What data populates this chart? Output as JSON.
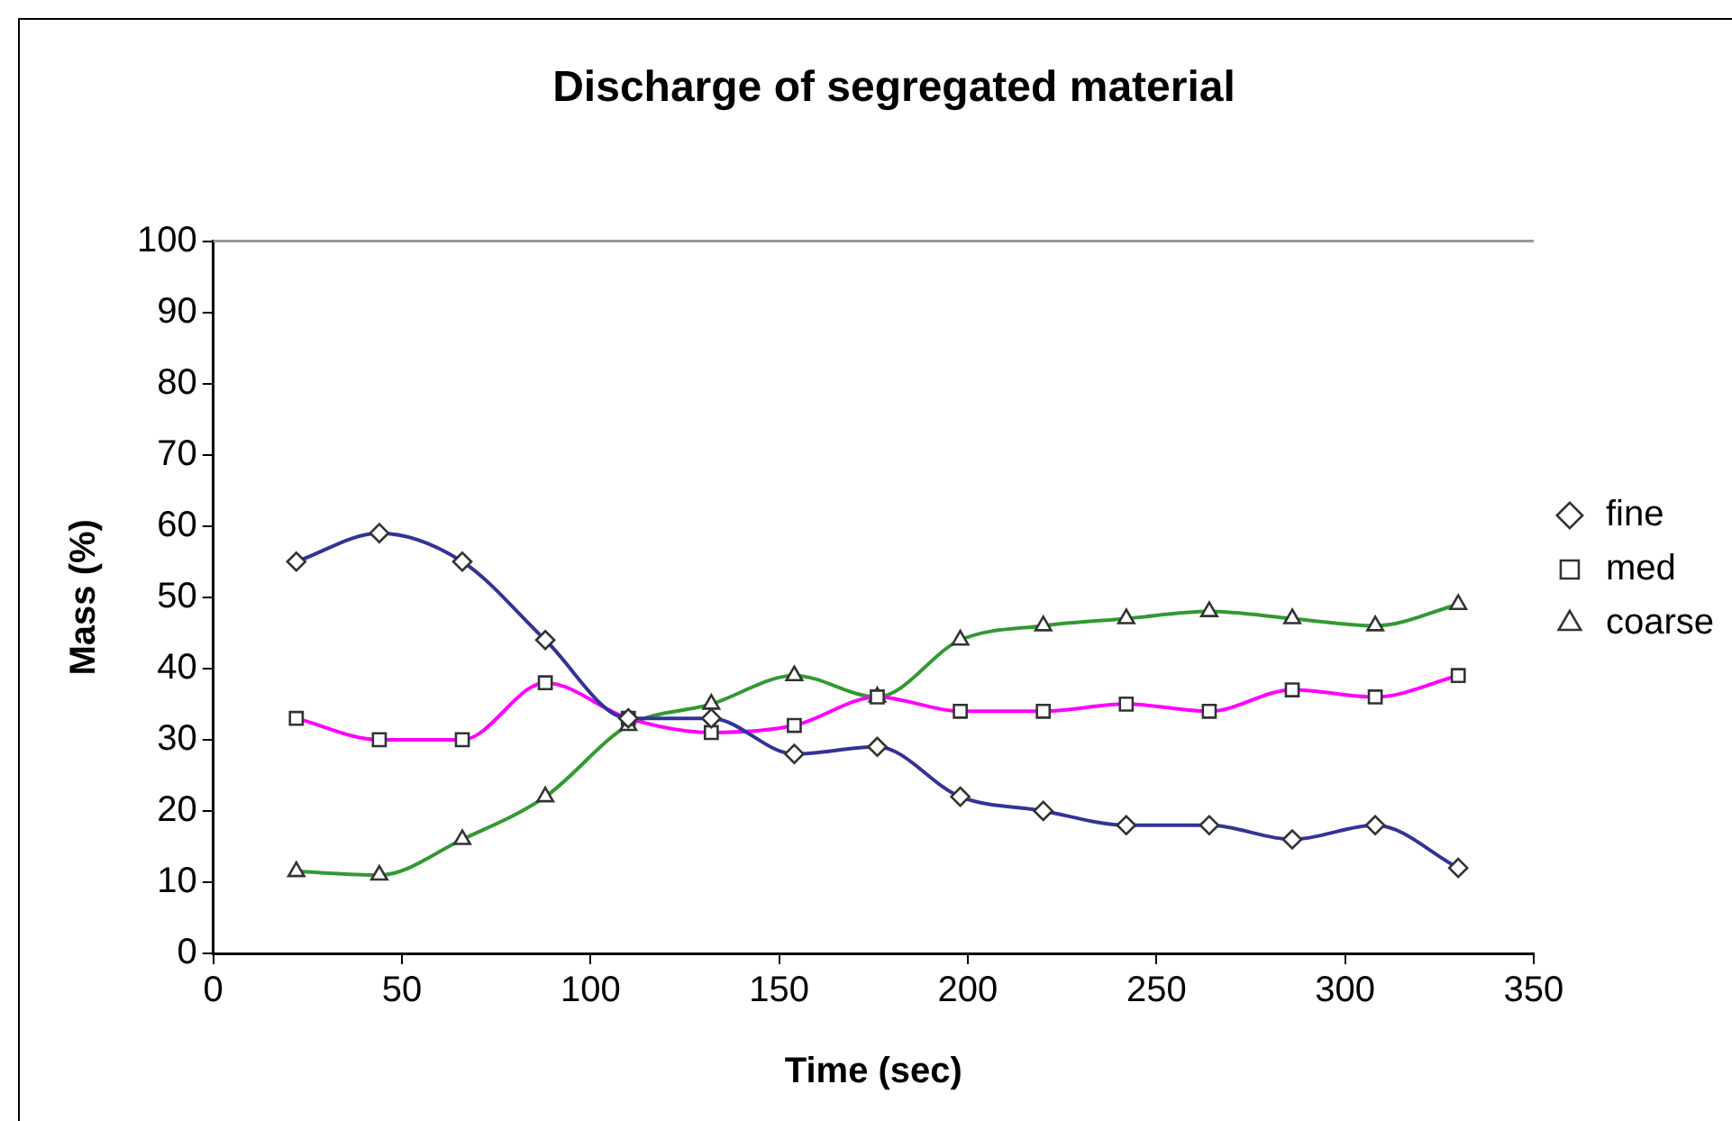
{
  "chart_data": {
    "type": "line",
    "title": "Discharge of segregated material",
    "xlabel": "Time (sec)",
    "ylabel": "Mass (%)",
    "x": [
      22,
      44,
      66,
      88,
      110,
      132,
      154,
      176,
      198,
      220,
      242,
      264,
      286,
      308,
      330
    ],
    "xlim": [
      0,
      350
    ],
    "xticks": [
      0,
      50,
      100,
      150,
      200,
      250,
      300,
      350
    ],
    "ylim": [
      0,
      100
    ],
    "yticks": [
      0,
      10,
      20,
      30,
      40,
      50,
      60,
      70,
      80,
      90,
      100
    ],
    "grid": false,
    "legend": "right",
    "line_style": "solid",
    "series": [
      {
        "name": "fine",
        "color": "#333399",
        "marker": "diamond",
        "values": [
          55,
          59,
          55,
          44,
          33,
          33,
          28,
          29,
          22,
          20,
          18,
          18,
          16,
          18,
          12
        ]
      },
      {
        "name": "med",
        "color": "#ff00ff",
        "marker": "square",
        "values": [
          33,
          30,
          30,
          38,
          33,
          31,
          32,
          36,
          34,
          34,
          35,
          34,
          37,
          36,
          39
        ]
      },
      {
        "name": "coarse",
        "color": "#339933",
        "marker": "triangle",
        "values": [
          11.5,
          11,
          16,
          22,
          32,
          35,
          39,
          36,
          44,
          46,
          47,
          48,
          47,
          46,
          49
        ]
      }
    ]
  }
}
